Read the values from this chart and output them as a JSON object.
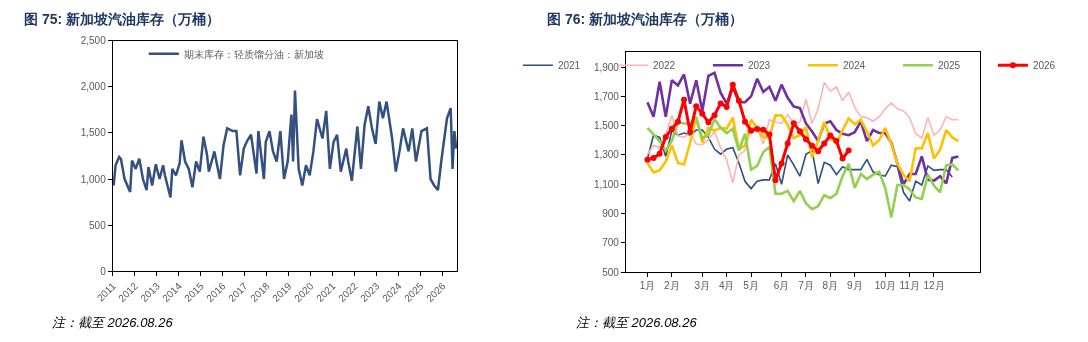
{
  "chart_data": [
    {
      "type": "line",
      "title": "图 75: 新加坡汽油库存（万桶）",
      "annotations": [
        "注：截至 2026.08.26"
      ],
      "x": [
        "2011-01",
        "2011-02",
        "2011-04",
        "2011-05",
        "2011-07",
        "2011-10",
        "2011-11",
        "2012-01",
        "2012-03",
        "2012-05",
        "2012-07",
        "2012-08",
        "2012-10",
        "2012-12",
        "2013-02",
        "2013-04",
        "2013-05",
        "2013-08",
        "2013-09",
        "2013-11",
        "2014-01",
        "2014-02",
        "2014-04",
        "2014-06",
        "2014-08",
        "2014-10",
        "2014-12",
        "2015-02",
        "2015-04",
        "2015-05",
        "2015-08",
        "2015-11",
        "2016-01",
        "2016-03",
        "2016-06",
        "2016-08",
        "2016-10",
        "2016-12",
        "2017-02",
        "2017-04",
        "2017-07",
        "2017-08",
        "2017-11",
        "2017-12",
        "2018-02",
        "2018-04",
        "2018-06",
        "2018-08",
        "2018-10",
        "2018-12",
        "2019-02",
        "2019-03",
        "2019-04",
        "2019-06",
        "2019-08",
        "2019-10",
        "2019-12",
        "2020-02",
        "2020-04",
        "2020-07",
        "2020-09",
        "2020-11",
        "2021-01",
        "2021-03",
        "2021-05",
        "2021-08",
        "2021-09",
        "2021-11",
        "2022-02",
        "2022-04",
        "2022-06",
        "2022-08",
        "2022-10",
        "2022-12",
        "2023-02",
        "2023-04",
        "2023-06",
        "2023-09",
        "2023-11",
        "2024-01",
        "2024-03",
        "2024-06",
        "2024-08",
        "2024-10",
        "2025-01",
        "2025-04",
        "2025-06",
        "2025-08",
        "2025-10",
        "2025-12",
        "2026-03",
        "2026-05",
        "2026-06",
        "2026-07",
        "2026-08"
      ],
      "series": [
        {
          "name": "期末库存：轻质馏分油：新加坡",
          "color": "#34507f",
          "values": [
            930,
            1150,
            1240,
            1220,
            1000,
            860,
            1200,
            1110,
            1220,
            1000,
            880,
            1130,
            930,
            1160,
            1000,
            1150,
            1040,
            800,
            1110,
            1040,
            1170,
            1420,
            1190,
            1110,
            910,
            1190,
            1080,
            1460,
            1260,
            1080,
            1300,
            1000,
            1370,
            1550,
            1520,
            1520,
            1040,
            1330,
            1420,
            1480,
            1060,
            1520,
            1000,
            1400,
            1520,
            1300,
            1190,
            1520,
            1000,
            1190,
            1700,
            1190,
            1960,
            1110,
            930,
            1150,
            1040,
            1300,
            1650,
            1440,
            1740,
            1110,
            1400,
            1480,
            1080,
            1330,
            1190,
            980,
            1570,
            1110,
            1590,
            1790,
            1550,
            1380,
            1840,
            1660,
            1840,
            1440,
            1080,
            1300,
            1550,
            1300,
            1550,
            1190,
            1520,
            1550,
            1000,
            930,
            880,
            1220,
            1660,
            1770,
            1110,
            1520,
            1330
          ]
        }
      ],
      "xlim": [
        "2011-01-01",
        "2026-08-31"
      ],
      "xticks": [
        "2011",
        "2012",
        "2013",
        "2014",
        "2015",
        "2016",
        "2017",
        "2018",
        "2019",
        "2020",
        "2021",
        "2022",
        "2023",
        "2024",
        "2025",
        "2026"
      ],
      "ylim": [
        0,
        2500
      ],
      "yticks": [
        0,
        500,
        {
          "value": 1000,
          "label": "1,000"
        },
        {
          "value": 1500,
          "label": "1,500"
        },
        {
          "value": 2000,
          "label": "2,000"
        },
        {
          "value": 2500,
          "label": "2,500"
        }
      ],
      "legend": "top left",
      "grid": false
    },
    {
      "type": "line",
      "title": "图 76: 新加坡汽油库存（万桶）",
      "annotations": [
        "注：截至 2026.08.26"
      ],
      "categories": [
        "1月",
        null,
        null,
        null,
        "2月",
        null,
        null,
        null,
        null,
        "3月",
        null,
        null,
        null,
        "4月",
        null,
        null,
        null,
        "5月",
        null,
        null,
        null,
        null,
        "6月",
        null,
        null,
        null,
        "7月",
        null,
        null,
        null,
        "8月",
        null,
        null,
        null,
        "9月",
        null,
        null,
        null,
        null,
        "10月",
        null,
        null,
        null,
        "11月",
        null,
        null,
        null,
        "12月",
        null,
        null,
        null,
        null
      ],
      "series": [
        {
          "name": "2021",
          "color": "#2f4f7f",
          "values": [
            1275,
            1435,
            1420,
            1290,
            1465,
            1435,
            1450,
            1435,
            1470,
            1470,
            1420,
            1340,
            1305,
            1340,
            1350,
            1245,
            1120,
            1070,
            1120,
            1130,
            1130,
            1240,
            1100,
            1300,
            1230,
            1155,
            1305,
            1330,
            1105,
            1250,
            1230,
            1165,
            1220,
            1200,
            1200,
            1200,
            1270,
            1185,
            1165,
            1155,
            1230,
            1220,
            1045,
            985,
            1120,
            1095,
            1225,
            1195,
            1200,
            1200,
            1150,
            null
          ]
        },
        {
          "name": "2022",
          "color": "#ffb3b3",
          "values": [
            1305,
            1365,
            1350,
            1440,
            1570,
            1430,
            1420,
            1450,
            1375,
            1370,
            1405,
            1460,
            1350,
            1265,
            1110,
            1300,
            1330,
            1485,
            1485,
            1375,
            1540,
            1525,
            1515,
            1575,
            1515,
            1525,
            1680,
            1515,
            1615,
            1795,
            1735,
            1765,
            1670,
            1730,
            1625,
            1560,
            1555,
            1530,
            1560,
            1615,
            1655,
            1615,
            1600,
            1555,
            1445,
            1415,
            1555,
            1435,
            1470,
            1560,
            1540,
            1540
          ]
        },
        {
          "name": "2023",
          "color": "#7030a0",
          "values": [
            1660,
            1560,
            1800,
            1560,
            1810,
            1775,
            1850,
            1650,
            1810,
            1600,
            1840,
            1860,
            1725,
            1650,
            1760,
            1660,
            1660,
            1700,
            1820,
            1730,
            1765,
            1670,
            1780,
            1690,
            1630,
            1620,
            1515,
            1460,
            1395,
            1515,
            1530,
            1470,
            1445,
            1435,
            1455,
            1530,
            1395,
            1470,
            1450,
            1450,
            1385,
            1240,
            1100,
            1170,
            1170,
            1290,
            1130,
            1125,
            1155,
            1105,
            1280,
            1290
          ]
        },
        {
          "name": "2024",
          "color": "#ffc000",
          "values": [
            1245,
            1180,
            1195,
            1255,
            1365,
            1245,
            1235,
            1385,
            1560,
            1385,
            1485,
            1465,
            1485,
            1480,
            1555,
            1340,
            1365,
            1540,
            1485,
            1420,
            1420,
            1570,
            1570,
            1505,
            1415,
            1435,
            1490,
            1285,
            1395,
            1525,
            1415,
            1380,
            1470,
            1550,
            1510,
            1540,
            1460,
            1365,
            1400,
            1485,
            1375,
            1240,
            1165,
            1120,
            1345,
            1345,
            1450,
            1275,
            1335,
            1470,
            1420,
            1395
          ]
        },
        {
          "name": "2025",
          "color": "#92d050",
          "values": [
            1485,
            1440,
            1395,
            1330,
            1395,
            1525,
            1515,
            1515,
            1545,
            1415,
            1435,
            1545,
            1485,
            1450,
            1480,
            1330,
            1445,
            1200,
            1225,
            1320,
            1355,
            1035,
            1035,
            1055,
            985,
            1055,
            970,
            930,
            950,
            1025,
            1005,
            1035,
            1155,
            1240,
            1075,
            1170,
            1135,
            1165,
            1185,
            1075,
            875,
            1095,
            1095,
            1065,
            1010,
            1000,
            1165,
            1090,
            1045,
            1230,
            1235,
            1195
          ]
        },
        {
          "name": "2026",
          "color": "#ff0000",
          "marker": "circle",
          "values": [
            1268,
            1279,
            1308,
            1422,
            1479,
            1527,
            1677,
            1457,
            1633,
            1582,
            1523,
            1571,
            1652,
            1628,
            1780,
            1670,
            1527,
            1466,
            1477,
            1472,
            1440,
            1128,
            1242,
            1378,
            1516,
            1461,
            1407,
            1363,
            1325,
            1378,
            1433,
            1396,
            1275,
            1330,
            null,
            null,
            null,
            null,
            null,
            null,
            null,
            null,
            null,
            null,
            null,
            null,
            null,
            null,
            null,
            null,
            null,
            null
          ]
        }
      ],
      "ylim": [
        500,
        2000
      ],
      "yticks": [
        500,
        700,
        900,
        {
          "value": 1100,
          "label": "1,100"
        },
        {
          "value": 1300,
          "label": "1,300"
        },
        {
          "value": 1500,
          "label": "1,500"
        },
        {
          "value": 1700,
          "label": "1,700"
        },
        {
          "value": 1900,
          "label": "1,900"
        }
      ],
      "legend": "top",
      "grid": false
    }
  ]
}
